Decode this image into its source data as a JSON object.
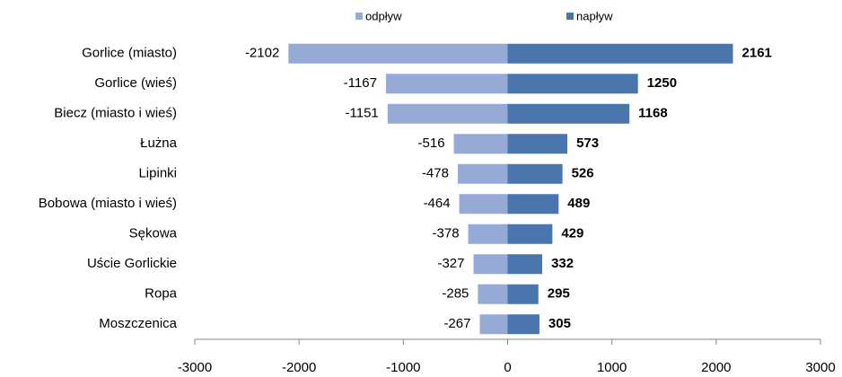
{
  "chart_data": {
    "type": "bar",
    "orientation": "horizontal",
    "categories": [
      "Gorlice (miasto)",
      "Gorlice (wieś)",
      "Biecz (miasto  i wieś)",
      "Łużna",
      "Lipinki",
      "Bobowa (miasto  i wieś)",
      "Sękowa",
      "Uście Gorlickie",
      "Ropa",
      "Moszczenica"
    ],
    "series": [
      {
        "name": "odpływ",
        "color": "#95abd6",
        "values": [
          -2102,
          -1167,
          -1151,
          -516,
          -478,
          -464,
          -378,
          -327,
          -285,
          -267
        ]
      },
      {
        "name": "napływ",
        "color": "#4a76ad",
        "values": [
          2161,
          1250,
          1168,
          573,
          526,
          489,
          429,
          332,
          295,
          305
        ]
      }
    ],
    "xlim": [
      -3000,
      3000
    ],
    "xticks": [
      -3000,
      -2000,
      -1000,
      0,
      1000,
      2000,
      3000
    ],
    "legend": "top"
  }
}
